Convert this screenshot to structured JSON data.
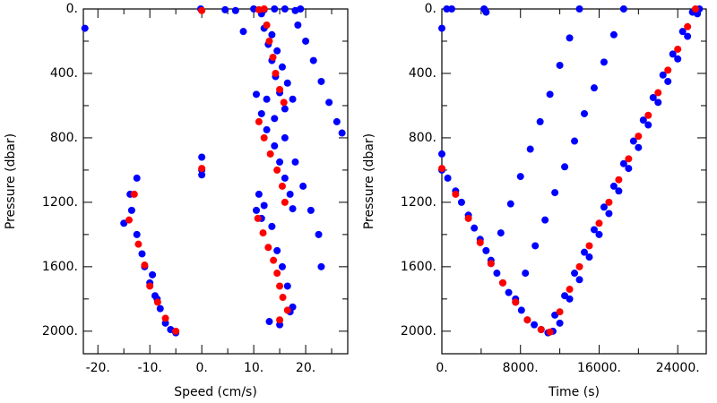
{
  "chart_data": [
    {
      "type": "scatter",
      "xlabel": "Speed (cm/s)",
      "ylabel": "Pressure (dbar)",
      "xlim": [
        -22.8,
        28.1
      ],
      "ylim": [
        2140,
        0
      ],
      "xticks": [
        {
          "value": -20,
          "label": "-20."
        },
        {
          "value": -10,
          "label": "-10."
        },
        {
          "value": 0,
          "label": "0."
        },
        {
          "value": 10,
          "label": "10."
        },
        {
          "value": 20,
          "label": "20."
        }
      ],
      "xminorticks": [
        -15,
        -5,
        5,
        15,
        25
      ],
      "yticks": [
        {
          "value": 0,
          "label": "0."
        },
        {
          "value": 400,
          "label": "400."
        },
        {
          "value": 800,
          "label": "800."
        },
        {
          "value": 1200,
          "label": "1200."
        },
        {
          "value": 1600,
          "label": "1600."
        },
        {
          "value": 2000,
          "label": "2000."
        }
      ],
      "yminorticks": [
        200,
        600,
        1000,
        1400,
        1800
      ],
      "series": [
        {
          "color": "#0000ff",
          "x": [
            -22.5,
            -12.5,
            -13.8,
            -15,
            -13.5,
            -12.5,
            -11.5,
            -11,
            -10,
            -9,
            -8,
            -7,
            -6,
            -5,
            -9.5,
            -8.6,
            0,
            0,
            0,
            -0.2,
            4.5,
            6.5,
            8,
            10,
            12,
            14,
            16,
            18,
            19,
            11.5,
            12,
            12.8,
            13.5,
            14.2,
            15,
            16,
            13.5,
            14.5,
            15.5,
            16.5,
            17.5,
            18.5,
            20,
            21.5,
            23,
            24.5,
            26,
            27,
            10.5,
            11.5,
            12.5,
            14,
            15,
            16,
            17,
            17.5,
            12.5,
            14,
            16,
            18,
            19.5,
            21,
            22.5,
            23,
            11,
            12,
            13.5,
            14.5,
            15.5,
            16.5,
            17.5,
            17,
            13,
            15,
            10.5,
            11.5
          ],
          "y": [
            120,
            1050,
            1150,
            1330,
            1250,
            1400,
            1520,
            1600,
            1700,
            1780,
            1860,
            1950,
            1990,
            2010,
            1650,
            1800,
            920,
            1000,
            1030,
            0,
            5,
            10,
            140,
            0,
            5,
            0,
            0,
            10,
            0,
            30,
            120,
            220,
            320,
            420,
            520,
            620,
            160,
            260,
            360,
            460,
            560,
            100,
            200,
            320,
            450,
            580,
            700,
            770,
            530,
            650,
            750,
            850,
            950,
            1050,
            1150,
            1240,
            560,
            680,
            800,
            950,
            1100,
            1250,
            1400,
            1600,
            1150,
            1220,
            1350,
            1500,
            1600,
            1720,
            1850,
            1880,
            1940,
            1960,
            1250,
            1300
          ]
        },
        {
          "color": "#ff0000",
          "x": [
            -13,
            -14,
            -12.2,
            -11,
            -10,
            -8.5,
            -7,
            -5,
            0,
            0,
            11,
            12,
            12.5,
            13,
            13.7,
            14.2,
            15,
            15.8,
            11,
            12,
            13.2,
            14.5,
            15.5,
            16,
            10.8,
            11.8,
            12.8,
            13.8,
            14.5,
            15,
            15.6,
            16.5,
            15
          ],
          "y": [
            1150,
            1310,
            1460,
            1590,
            1720,
            1820,
            1920,
            2000,
            990,
            10,
            5,
            0,
            100,
            200,
            300,
            400,
            500,
            580,
            700,
            800,
            900,
            1000,
            1100,
            1200,
            1300,
            1390,
            1480,
            1560,
            1640,
            1720,
            1790,
            1870,
            1930
          ]
        }
      ]
    },
    {
      "type": "scatter",
      "xlabel": "Time (s)",
      "ylabel": "Pressure (dbar)",
      "xlim": [
        0,
        26900
      ],
      "ylim": [
        2140,
        0
      ],
      "xticks": [
        {
          "value": 0,
          "label": "0."
        },
        {
          "value": 8000,
          "label": "8000."
        },
        {
          "value": 16000,
          "label": "16000."
        },
        {
          "value": 24000,
          "label": "24000."
        }
      ],
      "xminorticks": [
        4000,
        12000,
        20000
      ],
      "yticks": [
        {
          "value": 0,
          "label": "0."
        },
        {
          "value": 400,
          "label": "400."
        },
        {
          "value": 800,
          "label": "800."
        },
        {
          "value": 1200,
          "label": "1200."
        },
        {
          "value": 1600,
          "label": "1600."
        },
        {
          "value": 2000,
          "label": "2000."
        }
      ],
      "yminorticks": [
        200,
        600,
        1000,
        1400,
        1800
      ],
      "series": [
        {
          "color": "#0000ff",
          "x": [
            0,
            500,
            1000,
            0,
            0,
            600,
            1400,
            2000,
            2700,
            3300,
            3900,
            4500,
            5000,
            5600,
            6200,
            6800,
            7500,
            8100,
            8700,
            9400,
            10100,
            10800,
            11300,
            4300,
            4500,
            5000,
            6000,
            7000,
            8000,
            9000,
            10000,
            11000,
            12000,
            13000,
            14000,
            7500,
            8500,
            9500,
            10500,
            11500,
            12500,
            13500,
            14500,
            15500,
            16500,
            17500,
            18500,
            11500,
            12500,
            13500,
            14500,
            15500,
            16500,
            17500,
            18500,
            19500,
            20500,
            21500,
            22500,
            23500,
            24500,
            25500,
            26200,
            12000,
            13000,
            14000,
            15000,
            16000,
            17000,
            18000,
            19000,
            20000,
            21000,
            22000,
            23000,
            24000,
            25000,
            26000
          ],
          "y": [
            120,
            0,
            0,
            900,
            1000,
            1050,
            1130,
            1200,
            1280,
            1360,
            1430,
            1500,
            1580,
            1640,
            1700,
            1760,
            1820,
            1870,
            1930,
            1960,
            1990,
            2010,
            2000,
            0,
            20,
            1560,
            1390,
            1210,
            1040,
            870,
            700,
            530,
            350,
            180,
            0,
            1800,
            1640,
            1470,
            1310,
            1140,
            980,
            820,
            650,
            490,
            330,
            160,
            0,
            1900,
            1780,
            1640,
            1510,
            1370,
            1230,
            1100,
            960,
            820,
            690,
            550,
            410,
            280,
            140,
            20,
            0,
            1950,
            1800,
            1680,
            1540,
            1400,
            1270,
            1130,
            990,
            860,
            720,
            580,
            450,
            310,
            170,
            30
          ]
        },
        {
          "color": "#ff0000",
          "x": [
            0,
            1400,
            2700,
            3900,
            5000,
            6200,
            7500,
            8700,
            10100,
            11000,
            12000,
            13000,
            14000,
            15000,
            16000,
            17000,
            18000,
            19000,
            20000,
            21000,
            22000,
            23000,
            24000,
            25000,
            25800
          ],
          "y": [
            990,
            1150,
            1300,
            1450,
            1580,
            1700,
            1820,
            1930,
            1990,
            2005,
            1880,
            1740,
            1600,
            1470,
            1330,
            1200,
            1060,
            930,
            790,
            660,
            520,
            380,
            250,
            110,
            0
          ]
        }
      ]
    }
  ]
}
